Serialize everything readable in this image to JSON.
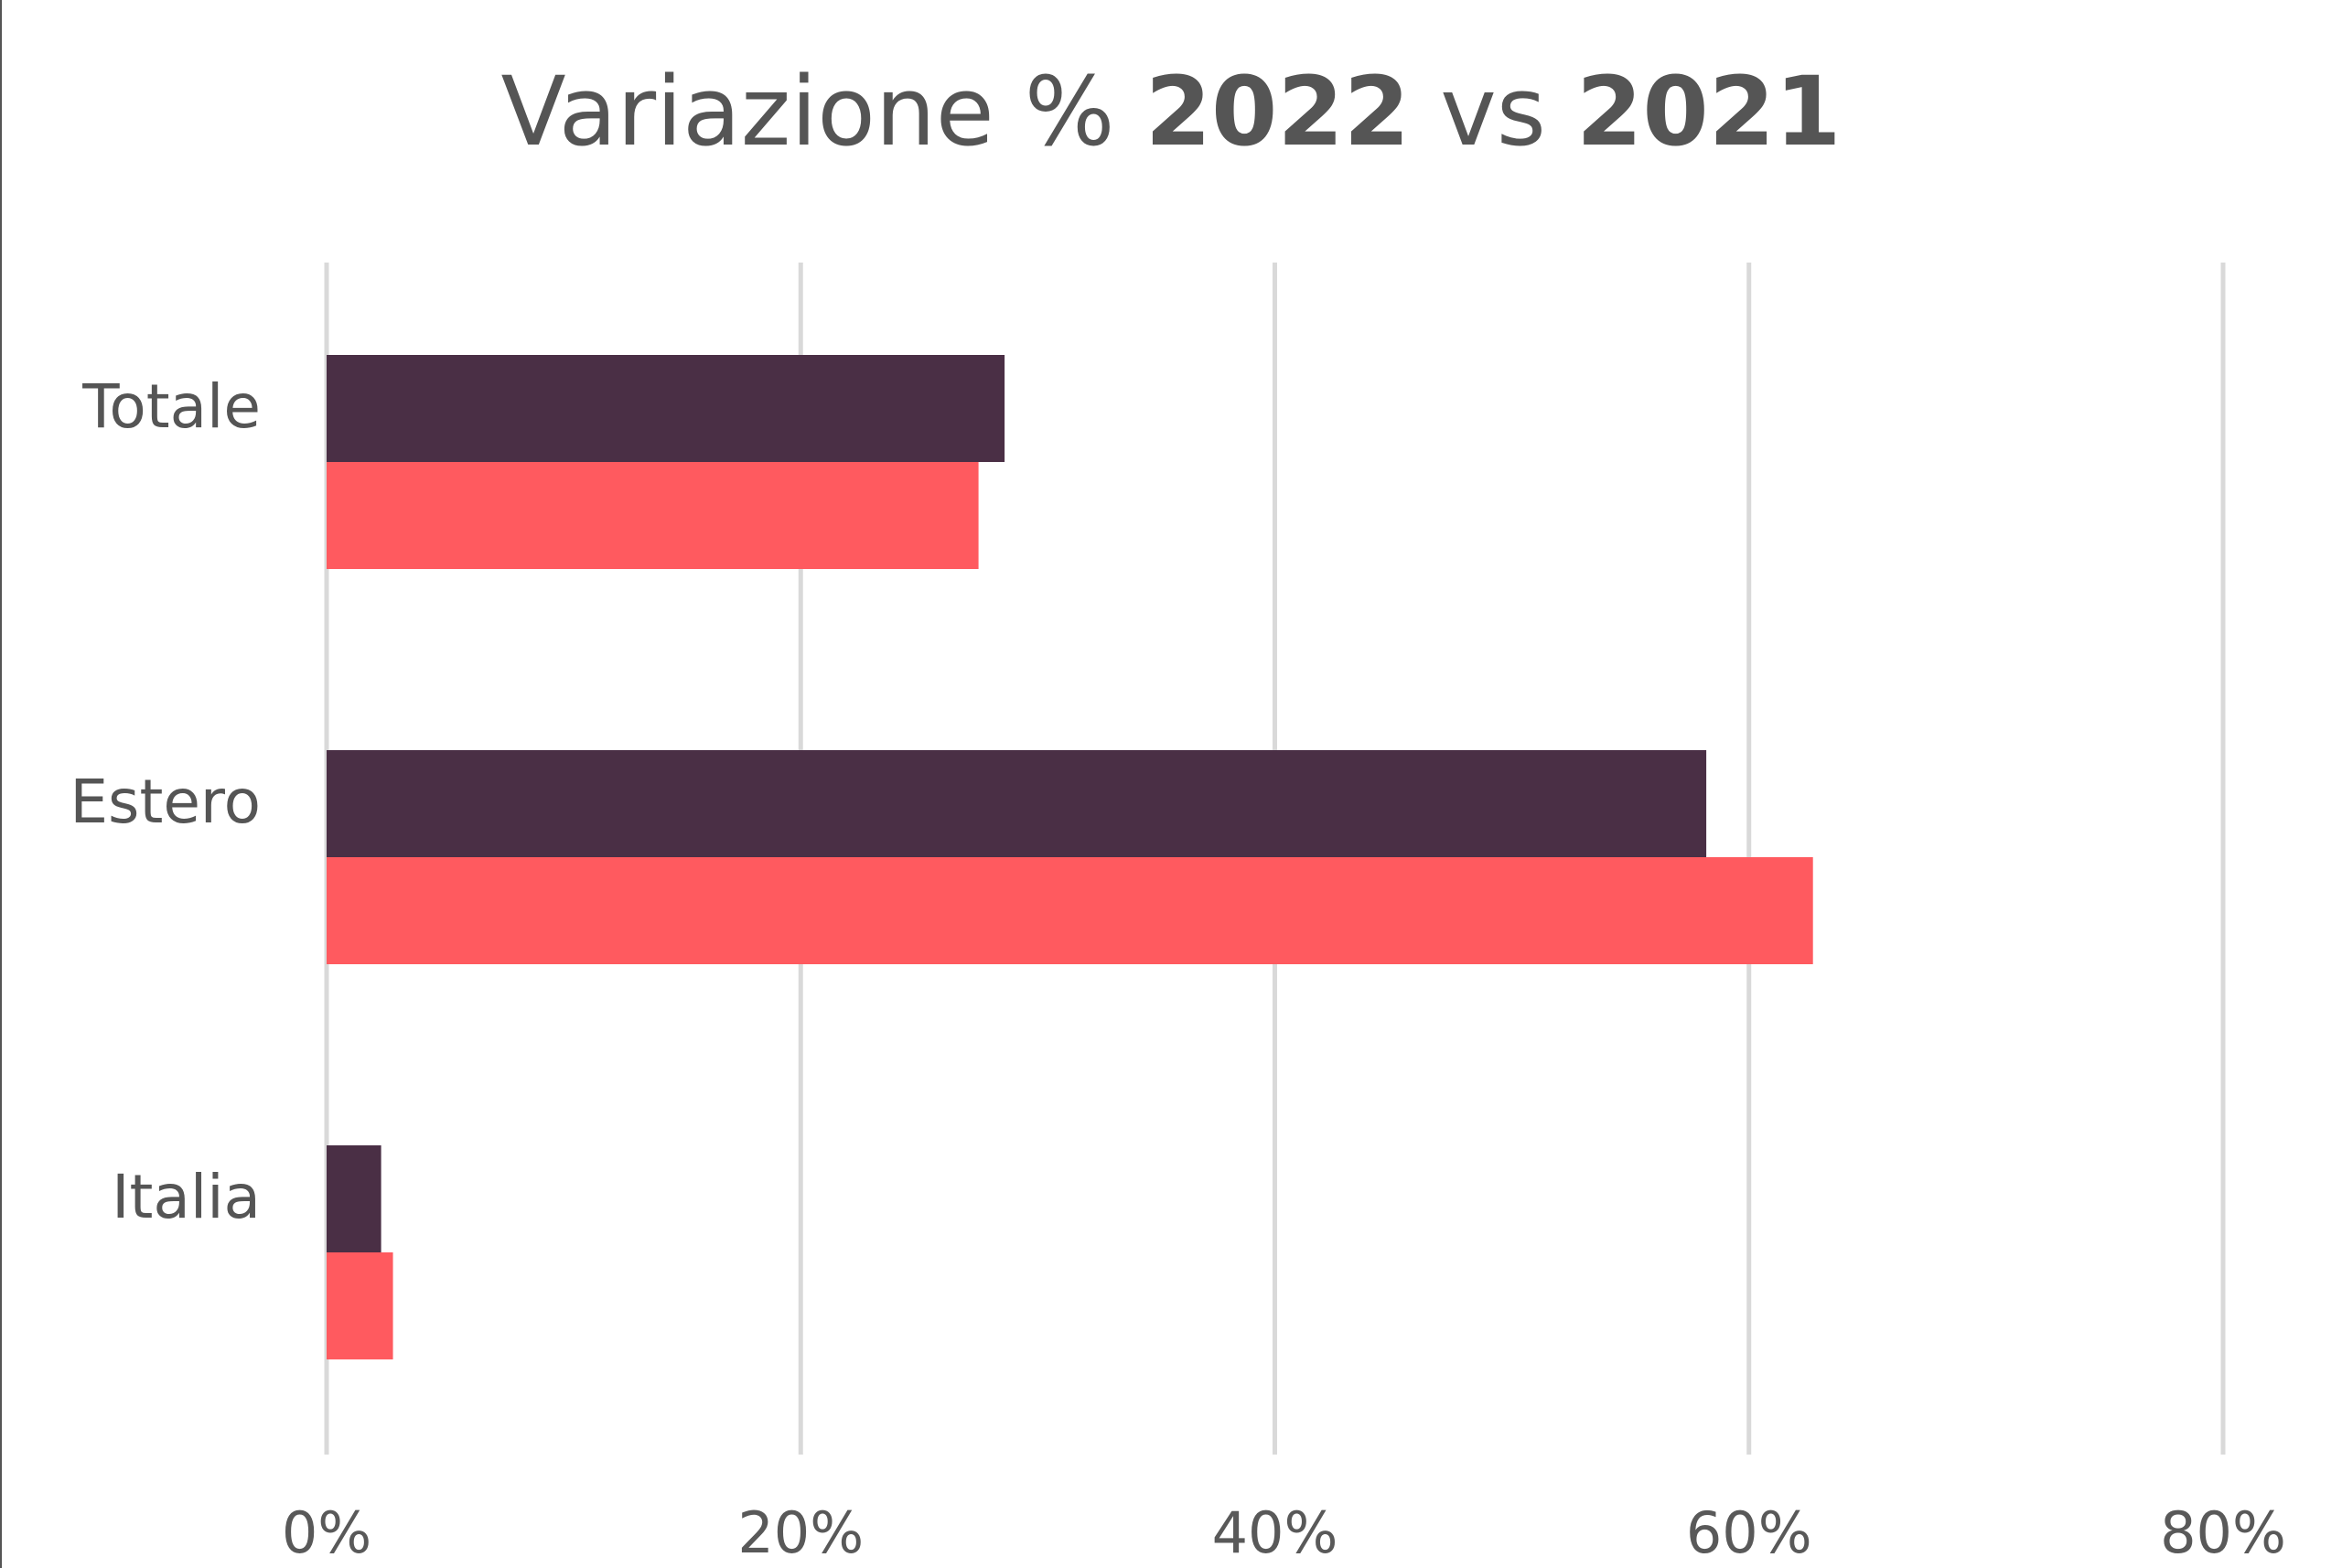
{
  "chart_data": {
    "type": "bar",
    "orientation": "horizontal",
    "title": {
      "prefix": "Variazione % ",
      "year_current": "2022",
      "separator": " vs ",
      "year_previous": "2021"
    },
    "categories": [
      "Totale",
      "Estero",
      "Italia"
    ],
    "series": [
      {
        "color": "#4a2f45",
        "values": [
          28.6,
          58.2,
          2.3
        ]
      },
      {
        "color": "#ff5a5f",
        "values": [
          27.5,
          62.7,
          2.8
        ]
      }
    ],
    "xlim": [
      0,
      80
    ],
    "xticks": [
      0,
      20,
      40,
      60,
      80
    ],
    "xtick_labels": [
      "0%",
      "20%",
      "40%",
      "60%",
      "80%"
    ],
    "grid": true,
    "legend": "none"
  }
}
